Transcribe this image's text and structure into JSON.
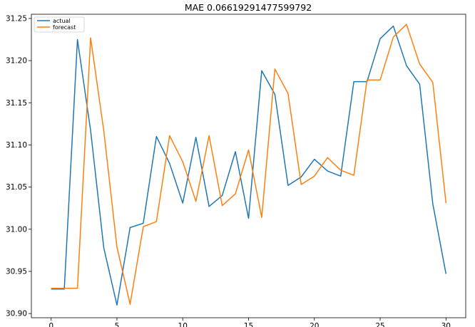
{
  "chart_data": {
    "type": "line",
    "title": "MAE 0.06619291477599792",
    "xlabel": "",
    "ylabel": "",
    "xlim": [
      -1.5,
      31.5
    ],
    "ylim": [
      30.895,
      31.255
    ],
    "x_ticks": [
      0,
      5,
      10,
      15,
      20,
      25,
      30
    ],
    "y_ticks": [
      30.9,
      30.95,
      31.0,
      31.05,
      31.1,
      31.15,
      31.2,
      31.25
    ],
    "x_tick_labels": [
      "0",
      "5",
      "10",
      "15",
      "20",
      "25",
      "30"
    ],
    "y_tick_labels": [
      "30.90",
      "30.95",
      "31.00",
      "31.05",
      "31.10",
      "31.15",
      "31.20",
      "31.25"
    ],
    "grid": false,
    "legend_position": "top-left",
    "x": [
      0,
      1,
      2,
      3,
      4,
      5,
      6,
      7,
      8,
      9,
      10,
      11,
      12,
      13,
      14,
      15,
      16,
      17,
      18,
      19,
      20,
      21,
      22,
      23,
      24,
      25,
      26,
      27,
      28,
      29,
      30
    ],
    "series": [
      {
        "name": "actual",
        "color": "#1f77b4",
        "values": [
          30.929,
          30.929,
          31.225,
          31.117,
          30.978,
          30.91,
          31.002,
          31.007,
          31.11,
          31.078,
          31.031,
          31.109,
          31.027,
          31.04,
          31.092,
          31.013,
          31.188,
          31.16,
          31.052,
          31.062,
          31.083,
          31.069,
          31.063,
          31.175,
          31.175,
          31.226,
          31.241,
          31.194,
          31.172,
          31.03,
          30.947
        ]
      },
      {
        "name": "forecast",
        "color": "#ff7f0e",
        "values": [
          30.93,
          30.93,
          30.93,
          31.227,
          31.117,
          30.979,
          30.911,
          31.003,
          31.009,
          31.111,
          31.08,
          31.033,
          31.111,
          31.028,
          31.042,
          31.094,
          31.014,
          31.19,
          31.161,
          31.053,
          31.063,
          31.085,
          31.07,
          31.064,
          31.177,
          31.177,
          31.228,
          31.243,
          31.196,
          31.174,
          31.031
        ]
      }
    ]
  }
}
